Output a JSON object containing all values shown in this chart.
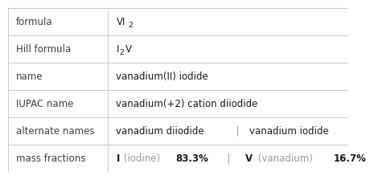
{
  "rows": [
    {
      "label": "formula",
      "value_parts": [
        {
          "text": "VI",
          "style": "normal"
        },
        {
          "text": "2",
          "style": "subscript"
        },
        {
          "text": "",
          "style": "normal"
        }
      ]
    },
    {
      "label": "Hill formula",
      "value_parts": [
        {
          "text": "I",
          "style": "normal"
        },
        {
          "text": "2",
          "style": "subscript"
        },
        {
          "text": "V",
          "style": "normal"
        }
      ]
    },
    {
      "label": "name",
      "value_parts": [
        {
          "text": "vanadium(II) iodide",
          "style": "normal"
        }
      ]
    },
    {
      "label": "IUPAC name",
      "value_parts": [
        {
          "text": "vanadium(+2) cation diiodide",
          "style": "normal"
        }
      ]
    },
    {
      "label": "alternate names",
      "value_parts": [
        {
          "text": "vanadium diiodide",
          "style": "normal"
        },
        {
          "text": "  |  ",
          "style": "separator"
        },
        {
          "text": "vanadium iodide",
          "style": "normal"
        }
      ]
    },
    {
      "label": "mass fractions",
      "value_parts": [
        {
          "text": "I",
          "style": "bold"
        },
        {
          "text": " (iodine) ",
          "style": "gray"
        },
        {
          "text": "83.3%",
          "style": "bold"
        },
        {
          "text": "   |   ",
          "style": "separator"
        },
        {
          "text": "V",
          "style": "bold"
        },
        {
          "text": " (vanadium) ",
          "style": "gray"
        },
        {
          "text": "16.7%",
          "style": "bold"
        }
      ]
    }
  ],
  "col_split": 0.295,
  "bg_color": "#ffffff",
  "label_color": "#404040",
  "value_color": "#1a1a1a",
  "gray_color": "#999999",
  "line_color": "#c8c8c8",
  "font_size": 8.5,
  "label_font_size": 8.5
}
